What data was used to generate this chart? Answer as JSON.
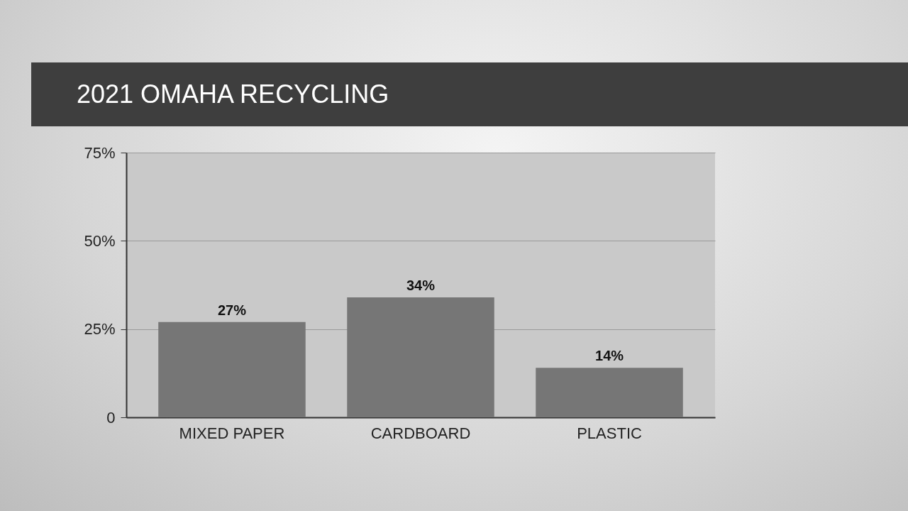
{
  "chart_data": {
    "type": "bar",
    "title": "2021 OMAHA RECYCLING",
    "categories": [
      "MIXED PAPER",
      "CARDBOARD",
      "PLASTIC"
    ],
    "values": [
      27,
      34,
      14
    ],
    "color": "#767676",
    "value_labels": [
      "27%",
      "34%",
      "14%"
    ],
    "ylim": [
      0,
      75
    ],
    "yticks": [
      {
        "value": 0,
        "label": "0"
      },
      {
        "value": 25,
        "label": "25%"
      },
      {
        "value": 50,
        "label": "50%"
      },
      {
        "value": 75,
        "label": "75%"
      }
    ],
    "grid": "y"
  }
}
